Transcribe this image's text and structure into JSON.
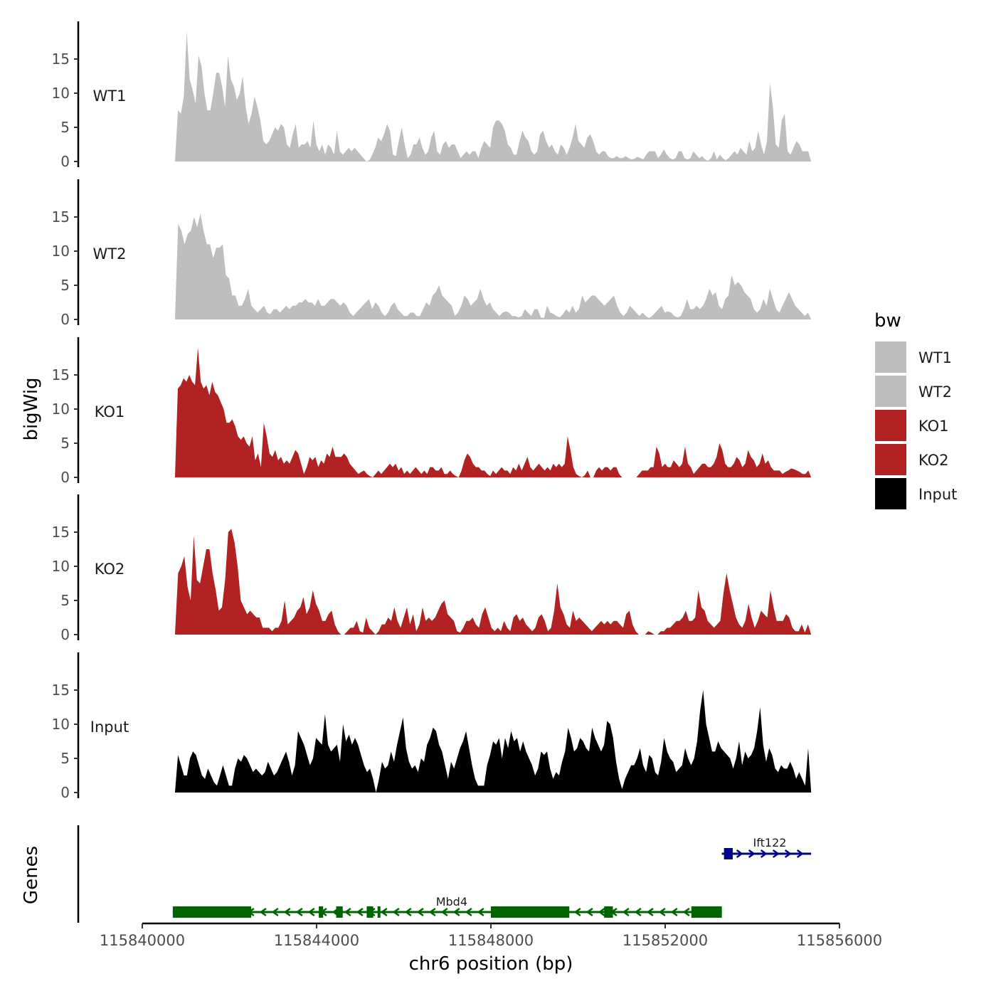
{
  "chart_data": {
    "type": "area",
    "title": "",
    "ylabel": "bigWig",
    "xlabel": "chr6 position (bp)",
    "genes_label": "Genes",
    "xlim": [
      115840000,
      115856000
    ],
    "ylim": [
      0,
      20
    ],
    "data_range": [
      115840750,
      115855350
    ],
    "x_ticks": [
      115840000,
      115844000,
      115848000,
      115852000,
      115856000
    ],
    "x_tick_labels": [
      "115840000",
      "115844000",
      "115848000",
      "115852000",
      "115856000"
    ],
    "y_ticks": [
      0,
      5,
      10,
      15
    ],
    "y_tick_labels": [
      "0",
      "5",
      "10",
      "15"
    ],
    "legend": {
      "title": "bw",
      "placement": "right",
      "entries": [
        {
          "label": "WT1",
          "color": "#bebebe"
        },
        {
          "label": "WT2",
          "color": "#bebebe"
        },
        {
          "label": "KO1",
          "color": "#b22222"
        },
        {
          "label": "KO2",
          "color": "#b22222"
        },
        {
          "label": "Input",
          "color": "#000000"
        }
      ]
    },
    "series": [
      {
        "name": "WT1",
        "color": "#bebebe",
        "values": [
          0,
          7.5,
          7,
          9.5,
          19,
          12,
          10.5,
          8.5,
          15.5,
          14,
          10,
          7.5,
          7.5,
          10,
          13,
          13,
          11,
          8,
          15.5,
          12,
          11,
          9,
          10,
          12.5,
          8,
          5.5,
          7,
          9.5,
          8,
          6,
          3,
          2.5,
          3,
          4,
          5,
          4.5,
          5.5,
          5,
          2.5,
          2,
          4,
          5.5,
          2,
          2.5,
          2.5,
          3,
          2,
          6,
          2.5,
          1.5,
          2.5,
          1,
          2.5,
          2,
          1,
          4.5,
          1.5,
          1,
          1.5,
          2,
          1.5,
          2,
          1.5,
          1,
          0.5,
          0,
          0.2,
          1,
          2,
          3.5,
          3,
          4,
          5.5,
          4.5,
          1,
          0.8,
          3,
          5,
          2.5,
          0.5,
          1,
          2.5,
          2.5,
          3.5,
          2,
          1,
          1.5,
          3.5,
          4.5,
          1.5,
          1,
          2.5,
          3,
          2,
          2.5,
          2.5,
          1.5,
          0.5,
          1,
          1.5,
          1,
          1.5,
          1.5,
          0.5,
          2,
          3,
          2.5,
          2,
          5,
          6,
          6,
          5.5,
          4.5,
          2.5,
          2,
          1,
          1,
          3,
          4.5,
          3.5,
          3,
          1.5,
          1,
          1.5,
          4,
          4.5,
          3,
          2,
          2.5,
          1.5,
          1,
          2.5,
          2,
          1,
          2,
          3.5,
          5.5,
          3,
          2.5,
          2,
          3.5,
          4,
          3,
          1.5,
          1,
          1.5,
          1.5,
          0.8,
          0.5,
          0.5,
          0.8,
          0.5,
          0.5,
          0.8,
          0.5,
          0.3,
          0.4,
          0.7,
          0.5,
          0.3,
          1,
          1.5,
          1.5,
          1.5,
          0.5,
          1,
          1.8,
          1,
          0.5,
          0.3,
          0.5,
          1.5,
          1.5,
          0.5,
          0.3,
          0.5,
          1.5,
          1,
          0.5,
          0.8,
          0.3,
          0.1,
          0.5,
          1.5,
          0.3,
          1,
          0.5,
          0.2,
          0.5,
          1,
          1.5,
          1,
          2,
          1.5,
          1,
          3,
          1.5,
          2,
          4.5,
          2.5,
          1,
          3,
          11.5,
          8,
          2.5,
          2,
          6,
          7,
          1.5,
          1,
          2,
          3,
          2.5,
          1.5,
          1.5,
          1.5,
          0
        ]
      },
      {
        "name": "WT2",
        "color": "#bebebe",
        "values": [
          0,
          14,
          13,
          11,
          12.5,
          13,
          15,
          13.5,
          15.5,
          13,
          11,
          11,
          9,
          10.5,
          10.5,
          11,
          6.5,
          6,
          3.5,
          3.5,
          2,
          2,
          3,
          4.5,
          2,
          1.5,
          1,
          1.5,
          2,
          1,
          0.8,
          1.5,
          1.5,
          1,
          1.5,
          2,
          1.5,
          2,
          2,
          2.5,
          2.5,
          3,
          2.5,
          2.5,
          2,
          3,
          2,
          2,
          2.5,
          3,
          3,
          2.5,
          2,
          2.5,
          2,
          1,
          0.5,
          1,
          1.5,
          2,
          2.5,
          3,
          1.5,
          2.5,
          2,
          1,
          0.5,
          1,
          2,
          2.5,
          1.5,
          1,
          0.5,
          0.5,
          1,
          1,
          0.5,
          0.5,
          1.5,
          2.5,
          2,
          3.5,
          4,
          5,
          3.5,
          3,
          2.5,
          2,
          0.5,
          1,
          2,
          3.5,
          3,
          2,
          2.5,
          3,
          4.5,
          3,
          2,
          2.5,
          1.5,
          1,
          0.5,
          1,
          1.2,
          1,
          0.5,
          0.5,
          0.3,
          0.5,
          1.5,
          1,
          0.5,
          1.5,
          1.5,
          0.3,
          0.2,
          2,
          1,
          0.8,
          0.5,
          0.3,
          0.8,
          1.5,
          1,
          2,
          1,
          1.5,
          3.5,
          2.5,
          3,
          3.5,
          3.5,
          3,
          2.5,
          2,
          2.5,
          3,
          3.5,
          2,
          1,
          0.5,
          1,
          2,
          1.5,
          1,
          0.5,
          1,
          0.5,
          0.2,
          0.5,
          1,
          1.5,
          2,
          1,
          1.2,
          1,
          0.5,
          0.3,
          0.5,
          1.5,
          3,
          1.5,
          1.5,
          2,
          1.5,
          2,
          3,
          4.5,
          3.5,
          4,
          2,
          1.5,
          3,
          3.5,
          6.5,
          5,
          5.5,
          5,
          4,
          3.5,
          3,
          1.5,
          1,
          1.5,
          3,
          2,
          4.5,
          3,
          1.5,
          1,
          2,
          3,
          4,
          3,
          2,
          1.5,
          1,
          0.5,
          1,
          0
        ]
      },
      {
        "name": "KO1",
        "color": "#b22222",
        "values": [
          0,
          13,
          13.5,
          14.5,
          14,
          15,
          14,
          13.5,
          19,
          14,
          13,
          13.5,
          12,
          14,
          12.5,
          12,
          11,
          10,
          8,
          8,
          8.5,
          7.5,
          6,
          5.5,
          6,
          5,
          4.5,
          6,
          2.5,
          3.5,
          1.5,
          8,
          6,
          3.5,
          3,
          4,
          2.5,
          3,
          2,
          2.5,
          2,
          3,
          4,
          3.5,
          2,
          0.5,
          1.5,
          3,
          2.5,
          3,
          1.5,
          2.5,
          2,
          3.5,
          3,
          4.5,
          3,
          3,
          3,
          3.5,
          3,
          2,
          1.5,
          1,
          0.5,
          0.8,
          1,
          0.5,
          0.2,
          0,
          0.5,
          1,
          0.5,
          1,
          1.5,
          2,
          1.5,
          2,
          1,
          1.5,
          0.5,
          1,
          0.5,
          1,
          1.5,
          1,
          0.5,
          1,
          0.5,
          1.5,
          1.5,
          1,
          1,
          1.5,
          0.5,
          0.5,
          1,
          0.5,
          0.2,
          0,
          1,
          2.5,
          3.5,
          3,
          2,
          1.5,
          1.5,
          1,
          1,
          0.5,
          0.2,
          1,
          0.5,
          1,
          1.5,
          1,
          1,
          0.5,
          1.5,
          1,
          2,
          1,
          2,
          3,
          1.5,
          1,
          1.5,
          2,
          1.5,
          1,
          1.5,
          1,
          2,
          1.5,
          2,
          1.5,
          2,
          6,
          4,
          1.5,
          0.5,
          0.2,
          0,
          0.3,
          1,
          0,
          0,
          1,
          1.5,
          1,
          1.5,
          1.5,
          1,
          1.5,
          1.5,
          0.5,
          0,
          0,
          0,
          0,
          0,
          0,
          0.5,
          1,
          1,
          1,
          1.5,
          1.5,
          4.5,
          3.5,
          1.5,
          2,
          1.5,
          1.5,
          2.5,
          2,
          1.5,
          2,
          4.5,
          2,
          1.5,
          0.5,
          1,
          1.5,
          2,
          2,
          1.5,
          1.5,
          2,
          3,
          5,
          4,
          2,
          1.5,
          1.5,
          2,
          3,
          2.5,
          1.5,
          2,
          4,
          3,
          2.5,
          1.5,
          2,
          3.5,
          2,
          2.5,
          1.5,
          1,
          1,
          1,
          0.5,
          0.8,
          1,
          1.3,
          1.2,
          1,
          0.8,
          0.5,
          0.5,
          1,
          0
        ]
      },
      {
        "name": "KO2",
        "color": "#b22222",
        "values": [
          0,
          9,
          10,
          11.5,
          7,
          5,
          14.5,
          8,
          7.5,
          10,
          12.5,
          12.5,
          9,
          6.5,
          3.5,
          4,
          8,
          15,
          15.5,
          13.5,
          10,
          5,
          4,
          3,
          3.5,
          3,
          2.5,
          2.5,
          1,
          1,
          1,
          0.5,
          1,
          1,
          2,
          5,
          1.5,
          2,
          2.5,
          3.5,
          4,
          5.5,
          3,
          4,
          6.5,
          4.5,
          3.5,
          2,
          2,
          3,
          3.5,
          1.5,
          0.5,
          0,
          0,
          0.5,
          1,
          1,
          2,
          0.5,
          0.3,
          2.5,
          1,
          0.5,
          0,
          0.5,
          1.5,
          1.5,
          2.5,
          2,
          4,
          2,
          1,
          2.5,
          4,
          1.5,
          3,
          0.5,
          1.5,
          4,
          2,
          2.5,
          2,
          2.5,
          3.5,
          4.5,
          5,
          3,
          2.5,
          2,
          0.5,
          0.3,
          1,
          2,
          2,
          2.5,
          1.5,
          1,
          3,
          4,
          2.5,
          1,
          0.5,
          1,
          0.5,
          2,
          1,
          0.5,
          2.5,
          3,
          2,
          2.5,
          1.5,
          1,
          0.5,
          1,
          2.5,
          3,
          2,
          0.5,
          1,
          3.5,
          7.5,
          4,
          3,
          1.5,
          1,
          3.5,
          2,
          2.5,
          2,
          1.5,
          1,
          0.5,
          1,
          1.5,
          2,
          1.5,
          2,
          1.5,
          2,
          2,
          1.5,
          1,
          3,
          3.5,
          1.5,
          0.5,
          0,
          0,
          0,
          0.5,
          0.3,
          0,
          0,
          0.5,
          0.5,
          1,
          1,
          1.5,
          2,
          2,
          2.5,
          3.5,
          2,
          2,
          2.5,
          6.5,
          4,
          3.5,
          2,
          1.5,
          1,
          1.5,
          2,
          6,
          9,
          6.5,
          4.5,
          2.5,
          1.5,
          1,
          2,
          4.5,
          2.5,
          1,
          2,
          3.5,
          3,
          2.5,
          6.5,
          4,
          2,
          2,
          2,
          3,
          2.5,
          1,
          0.5,
          0.5,
          1.5,
          0.3,
          1.5,
          0
        ]
      },
      {
        "name": "Input",
        "color": "#000000",
        "values": [
          0,
          5.5,
          4,
          2.5,
          2.5,
          5,
          6,
          5.5,
          4,
          2.5,
          2,
          3.5,
          2.5,
          1.5,
          1,
          2.5,
          4,
          2.5,
          1,
          1,
          3.5,
          5,
          4.5,
          5.5,
          5,
          4,
          3,
          3.5,
          3,
          2.5,
          3,
          4.5,
          3.5,
          2.5,
          3,
          4,
          5,
          6,
          4.5,
          2.5,
          4,
          9,
          8,
          7,
          5.5,
          4,
          5,
          8,
          7.5,
          7,
          11.5,
          7,
          6,
          6.5,
          7,
          4.5,
          10,
          7.5,
          8.5,
          7,
          8,
          7,
          5.5,
          4,
          3,
          3.5,
          2,
          0,
          2,
          4.5,
          3.5,
          4,
          6,
          4.5,
          7,
          9,
          11,
          6.5,
          4.5,
          3.5,
          4,
          3,
          5,
          4.5,
          7,
          8,
          9.5,
          9,
          7,
          6,
          4,
          2,
          4.5,
          3.5,
          5,
          6.5,
          7.5,
          9,
          6.5,
          4,
          2,
          1,
          1,
          1,
          4,
          5.5,
          7.5,
          7,
          8,
          5,
          8,
          6.5,
          9,
          7.5,
          8,
          6,
          7.5,
          6,
          5,
          4,
          2.5,
          3.5,
          6,
          5.5,
          6,
          3.5,
          2,
          3,
          2.5,
          4.5,
          6,
          9.5,
          8,
          6,
          6.5,
          8,
          7.5,
          6.5,
          6,
          9.5,
          8,
          7,
          6,
          7,
          10.5,
          10,
          8,
          4.5,
          2,
          0.5,
          2,
          3,
          4,
          4,
          5,
          6.5,
          4,
          3,
          5.5,
          5,
          3,
          2.5,
          4.5,
          8,
          6,
          5,
          4.5,
          3,
          3.5,
          4,
          6.5,
          5,
          4,
          5,
          7.5,
          12,
          15,
          10,
          8,
          6,
          6,
          7.5,
          6.5,
          6,
          5.5,
          5,
          3.5,
          5,
          7.5,
          4,
          6,
          5,
          5.5,
          6.5,
          9,
          12.5,
          7,
          4.5,
          6.5,
          5.5,
          3.5,
          3,
          4,
          3.5,
          3.5,
          4.5,
          3.5,
          2,
          3,
          2,
          1,
          6.5,
          0
        ]
      }
    ],
    "genes": [
      {
        "name": "Mbd4",
        "strand": "-",
        "color": "#006400",
        "start": 115840700,
        "end": 115853300,
        "exons": [
          [
            115840700,
            115841200
          ],
          [
            115841100,
            115842500
          ],
          [
            115844050,
            115844150
          ],
          [
            115844450,
            115844600
          ],
          [
            115845150,
            115845300
          ],
          [
            115845400,
            115845450
          ],
          [
            115848000,
            115849800
          ],
          [
            115850600,
            115850800
          ],
          [
            115852600,
            115853300
          ]
        ]
      },
      {
        "name": "Ift122",
        "strand": "+",
        "color": "#00008b",
        "start": 115853300,
        "end": 115855350,
        "exons": [
          [
            115853350,
            115853550
          ]
        ]
      }
    ]
  }
}
